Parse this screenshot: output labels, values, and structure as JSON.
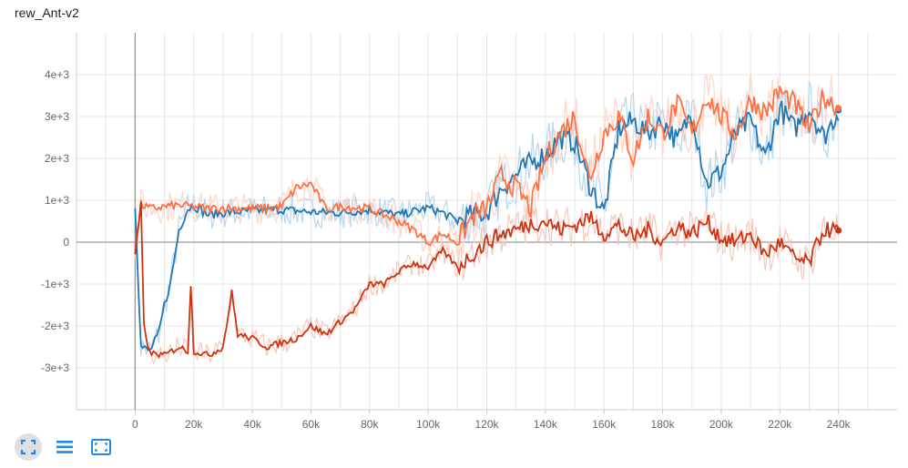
{
  "colors": {
    "blue": "#1f77b4",
    "orange": "#ff7043",
    "red": "#cc3311",
    "blue_light": "#aed3ec",
    "orange_light": "#ffd2c2",
    "red_light": "#f5c2b5",
    "icon": "#1e88e5"
  },
  "toolbar": {
    "icons": [
      "fit-domain-icon",
      "data-selection-icon",
      "zoom-icon"
    ]
  },
  "chart_data": {
    "type": "line",
    "title": "rew_Ant-v2",
    "xlabel": "",
    "ylabel": "",
    "xlim": [
      -20000,
      260000
    ],
    "ylim": [
      -4000,
      5000
    ],
    "x_ticks": [
      0,
      20000,
      40000,
      60000,
      80000,
      100000,
      120000,
      140000,
      160000,
      180000,
      200000,
      220000,
      240000
    ],
    "x_tick_labels": [
      "0",
      "20k",
      "40k",
      "60k",
      "80k",
      "100k",
      "120k",
      "140k",
      "160k",
      "180k",
      "200k",
      "220k",
      "240k"
    ],
    "y_ticks": [
      -3000,
      -2000,
      -1000,
      0,
      1000,
      2000,
      3000,
      4000
    ],
    "y_tick_labels": [
      "-3e+3",
      "-2e+3",
      "-1e+3",
      "0",
      "1e+3",
      "2e+3",
      "3e+3",
      "4e+3"
    ],
    "grid": true,
    "legend": "none",
    "series": [
      {
        "color_key": "blue",
        "x": [
          0,
          2000,
          5000,
          8000,
          10000,
          12000,
          15000,
          18000,
          20000,
          25000,
          30000,
          40000,
          50000,
          60000,
          70000,
          80000,
          90000,
          100000,
          105000,
          110000,
          115000,
          120000,
          125000,
          130000,
          135000,
          140000,
          145000,
          150000,
          155000,
          160000,
          165000,
          170000,
          175000,
          180000,
          185000,
          190000,
          195000,
          200000,
          205000,
          210000,
          215000,
          220000,
          225000,
          230000,
          235000,
          240000
        ],
        "y": [
          900,
          -2500,
          -2600,
          -2200,
          -1500,
          -1000,
          300,
          800,
          870,
          650,
          700,
          750,
          780,
          720,
          700,
          770,
          650,
          820,
          700,
          500,
          650,
          700,
          1300,
          1600,
          1900,
          2100,
          2500,
          2400,
          1400,
          700,
          2700,
          2900,
          2600,
          2900,
          2400,
          3100,
          1400,
          1700,
          2600,
          2900,
          2000,
          3200,
          2700,
          3200,
          2500,
          3150
        ]
      },
      {
        "color_key": "orange",
        "x": [
          0,
          2000,
          5000,
          10000,
          15000,
          20000,
          25000,
          30000,
          40000,
          50000,
          55000,
          60000,
          65000,
          70000,
          80000,
          90000,
          95000,
          100000,
          105000,
          110000,
          115000,
          120000,
          125000,
          130000,
          135000,
          140000,
          145000,
          150000,
          155000,
          160000,
          165000,
          170000,
          175000,
          180000,
          185000,
          190000,
          195000,
          200000,
          205000,
          210000,
          215000,
          220000,
          225000,
          230000,
          235000,
          240000
        ],
        "y": [
          -200,
          900,
          800,
          850,
          880,
          850,
          800,
          820,
          800,
          850,
          1300,
          1400,
          800,
          850,
          800,
          500,
          300,
          0,
          200,
          0,
          600,
          800,
          1600,
          1300,
          800,
          2000,
          2600,
          3000,
          1500,
          2600,
          3000,
          2000,
          3000,
          2600,
          3300,
          2600,
          3500,
          3000,
          2600,
          3400,
          3100,
          3600,
          3300,
          2700,
          3500,
          3200
        ]
      },
      {
        "color_key": "red",
        "x": [
          0,
          2000,
          3000,
          5000,
          10000,
          15000,
          18000,
          19000,
          20000,
          25000,
          30000,
          33000,
          35000,
          40000,
          45000,
          50000,
          55000,
          60000,
          65000,
          70000,
          75000,
          80000,
          85000,
          90000,
          95000,
          100000,
          105000,
          110000,
          115000,
          120000,
          125000,
          130000,
          135000,
          140000,
          145000,
          150000,
          155000,
          160000,
          165000,
          170000,
          175000,
          180000,
          185000,
          190000,
          195000,
          200000,
          205000,
          210000,
          215000,
          220000,
          225000,
          230000,
          235000,
          240000
        ],
        "y": [
          -300,
          900,
          -2000,
          -2650,
          -2700,
          -2500,
          -2600,
          -1000,
          -2600,
          -2700,
          -2500,
          -1200,
          -2200,
          -2300,
          -2500,
          -2400,
          -2300,
          -2000,
          -2200,
          -1900,
          -1600,
          -1000,
          -1000,
          -700,
          -500,
          -600,
          -200,
          -600,
          -300,
          0,
          200,
          300,
          450,
          500,
          300,
          400,
          600,
          200,
          400,
          100,
          300,
          0,
          400,
          200,
          500,
          100,
          0,
          200,
          -300,
          0,
          -400,
          -500,
          300,
          280
        ]
      }
    ]
  }
}
